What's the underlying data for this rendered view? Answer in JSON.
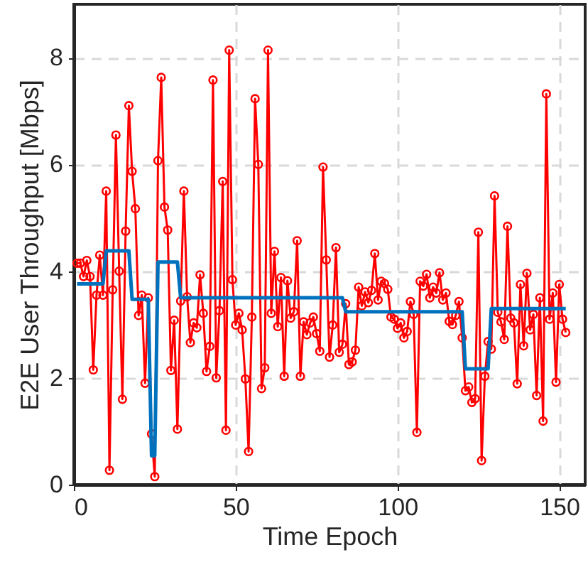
{
  "chart_data": {
    "type": "line",
    "xlabel": "Time Epoch",
    "ylabel": "E2E User Throughput [Mbps]",
    "xlim": [
      0,
      158
    ],
    "ylim": [
      0,
      9
    ],
    "xticks": [
      0,
      50,
      100,
      150
    ],
    "yticks": [
      0,
      2,
      4,
      6,
      8
    ],
    "grid": true,
    "line_style": "solid",
    "x": [
      1,
      2,
      3,
      4,
      5,
      6,
      7,
      8,
      9,
      10,
      11,
      12,
      13,
      14,
      15,
      16,
      17,
      18,
      19,
      20,
      21,
      22,
      23,
      24,
      25,
      26,
      27,
      28,
      29,
      30,
      31,
      32,
      33,
      34,
      35,
      36,
      37,
      38,
      39,
      40,
      41,
      42,
      43,
      44,
      45,
      46,
      47,
      48,
      49,
      50,
      51,
      52,
      53,
      54,
      55,
      56,
      57,
      58,
      59,
      60,
      61,
      62,
      63,
      64,
      65,
      66,
      67,
      68,
      69,
      70,
      71,
      72,
      73,
      74,
      75,
      76,
      77,
      78,
      79,
      80,
      81,
      82,
      83,
      84,
      85,
      86,
      87,
      88,
      89,
      90,
      91,
      92,
      93,
      94,
      95,
      96,
      97,
      98,
      99,
      100,
      101,
      102,
      103,
      104,
      105,
      106,
      107,
      108,
      109,
      110,
      111,
      112,
      113,
      114,
      115,
      116,
      117,
      118,
      119,
      120,
      121,
      122,
      123,
      124,
      125,
      126,
      127,
      128,
      129,
      130,
      131,
      132,
      133,
      134,
      135,
      136,
      137,
      138,
      139,
      140,
      141,
      142,
      143,
      144,
      145,
      146,
      147,
      148,
      149,
      150,
      151,
      152
    ],
    "series": [
      {
        "color": "#ff0000",
        "marker": "circle",
        "values": [
          4.15,
          4.15,
          3.9,
          4.2,
          3.9,
          2.15,
          3.55,
          4.3,
          3.55,
          5.5,
          0.27,
          3.65,
          6.55,
          4.0,
          1.6,
          4.75,
          7.1,
          5.87,
          5.17,
          3.17,
          3.55,
          1.9,
          3.5,
          0.95,
          0.15,
          6.07,
          7.63,
          5.2,
          4.77,
          2.14,
          3.08,
          1.04,
          3.44,
          5.5,
          3.52,
          2.66,
          3.03,
          2.94,
          3.93,
          3.21,
          2.12,
          2.59,
          7.58,
          2.0,
          3.26,
          5.68,
          1.02,
          8.14,
          3.84,
          2.99,
          3.21,
          2.9,
          1.98,
          0.62,
          3.14,
          7.23,
          6.0,
          1.8,
          2.19,
          8.14,
          3.21,
          4.37,
          2.96,
          3.88,
          2.03,
          3.82,
          3.12,
          3.24,
          4.57,
          2.03,
          3.05,
          2.81,
          3.03,
          3.14,
          2.83,
          2.5,
          5.95,
          4.21,
          2.39,
          2.99,
          4.44,
          2.48,
          2.63,
          3.39,
          2.25,
          2.3,
          2.52,
          3.7,
          3.35,
          3.61,
          3.41,
          3.64,
          4.33,
          3.46,
          3.81,
          3.77,
          3.66,
          3.14,
          3.1,
          2.93,
          3.03,
          2.75,
          2.87,
          3.43,
          3.19,
          0.98,
          3.81,
          3.72,
          3.94,
          3.5,
          3.7,
          3.59,
          3.97,
          3.46,
          3.59,
          3.06,
          3.0,
          3.17,
          3.43,
          2.75,
          1.76,
          1.83,
          1.54,
          1.61,
          4.73,
          0.45,
          2.03,
          2.68,
          2.54,
          5.41,
          3.23,
          3.05,
          2.72,
          4.84,
          3.12,
          3.03,
          1.89,
          3.75,
          2.6,
          3.96,
          2.9,
          3.19,
          1.67,
          3.5,
          1.19,
          7.32,
          3.1,
          3.59,
          1.92,
          3.75,
          3.1,
          2.85
        ]
      },
      {
        "color": "#0072bd",
        "marker": "none",
        "x": [
          1,
          9,
          10,
          17,
          18,
          23,
          24,
          25,
          26,
          32,
          33,
          83,
          84,
          120,
          121,
          128,
          129,
          152
        ],
        "values": [
          3.76,
          3.76,
          4.38,
          4.38,
          3.47,
          3.47,
          0.54,
          0.54,
          4.17,
          4.17,
          3.5,
          3.5,
          3.24,
          3.24,
          2.17,
          2.17,
          3.3,
          3.3
        ]
      }
    ]
  }
}
